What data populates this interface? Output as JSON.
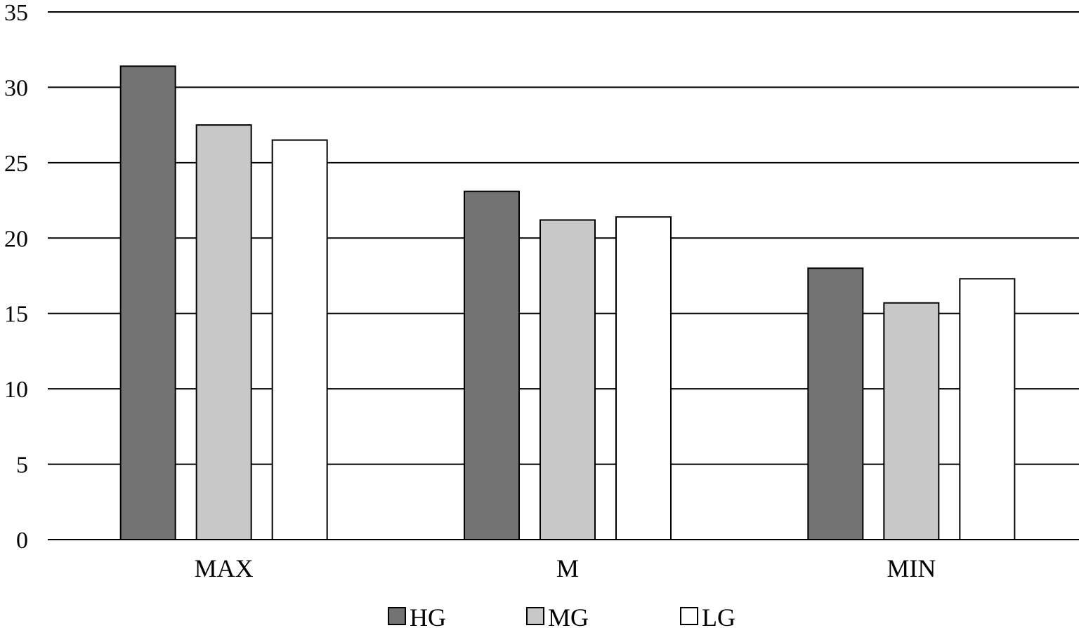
{
  "chart_data": {
    "type": "bar",
    "title": "",
    "xlabel": "",
    "ylabel": "",
    "ylim": [
      0,
      35
    ],
    "yticks": [
      0,
      5,
      10,
      15,
      20,
      25,
      30,
      35
    ],
    "grid": true,
    "legend_position": "bottom",
    "categories": [
      "MAX",
      "M",
      "MIN"
    ],
    "series": [
      {
        "name": "HG",
        "color": "#737373",
        "values": [
          31.4,
          23.1,
          18.0
        ]
      },
      {
        "name": "MG",
        "color": "#c8c8c8",
        "values": [
          27.5,
          21.2,
          15.7
        ]
      },
      {
        "name": "LG",
        "color": "#ffffff",
        "values": [
          26.5,
          21.4,
          17.3
        ]
      }
    ]
  }
}
